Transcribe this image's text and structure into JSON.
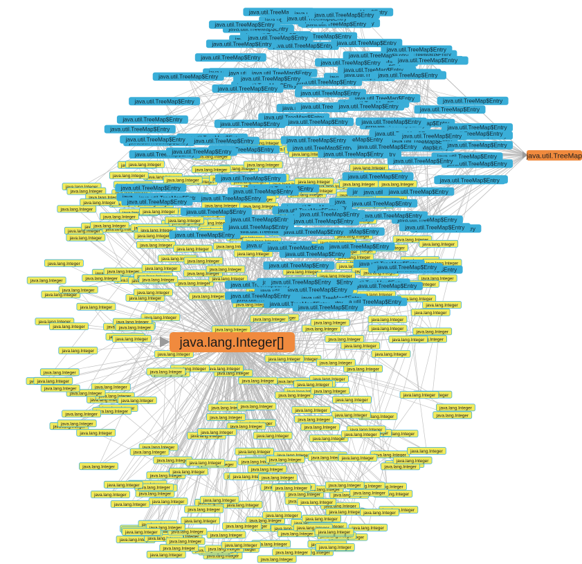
{
  "graph": {
    "hub": {
      "label": "java.lang.Integer[]"
    },
    "root": {
      "label": "java.util.TreeMap"
    },
    "entry_label": "java.util.TreeMap$Entry",
    "integer_label": "java.lang.Integer",
    "entry_count": 150,
    "integer_count": 330,
    "colors": {
      "hub_fill": "#f08a3e",
      "root_fill": "#f08a3e",
      "entry_fill": "#3aaed8",
      "integer_fill": "#f2ea5c",
      "integer_border": "#3aaed8",
      "edge": "#b9b9b9",
      "background": "#ffffff"
    }
  }
}
